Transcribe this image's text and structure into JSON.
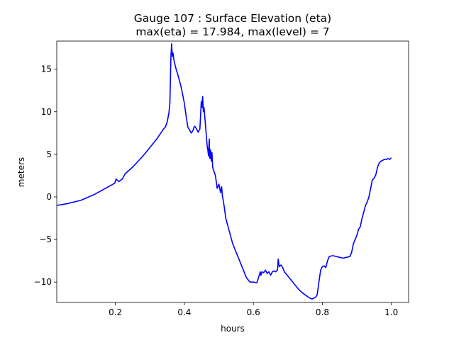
{
  "chart_data": {
    "type": "line",
    "title_line1": "Gauge 107 : Surface Elevation (eta)",
    "title_line2": "max(eta) =  17.984,    max(level) = 7",
    "xlabel": "hours",
    "ylabel": "meters",
    "xlim": [
      0.03,
      1.05
    ],
    "ylim": [
      -12.4,
      18.3
    ],
    "xticks": [
      0.2,
      0.4,
      0.6,
      0.8,
      1.0
    ],
    "xtick_labels": [
      "0.2",
      "0.4",
      "0.6",
      "0.8",
      "1.0"
    ],
    "yticks": [
      -10,
      -5,
      0,
      5,
      10,
      15
    ],
    "ytick_labels": [
      "−10",
      "−5",
      "0",
      "5",
      "10",
      "15"
    ],
    "grid": false,
    "line_color": "#0000ff",
    "series": [
      {
        "x": [
          0.03,
          0.06,
          0.1,
          0.14,
          0.18,
          0.198,
          0.202,
          0.21,
          0.22,
          0.228,
          0.25,
          0.28,
          0.3,
          0.32,
          0.34,
          0.345,
          0.35,
          0.355,
          0.358,
          0.361,
          0.363,
          0.365,
          0.367,
          0.37,
          0.373,
          0.376,
          0.38,
          0.39,
          0.395,
          0.4,
          0.405,
          0.41,
          0.42,
          0.425,
          0.428,
          0.43,
          0.435,
          0.44,
          0.445,
          0.449,
          0.451,
          0.453,
          0.455,
          0.457,
          0.46,
          0.463,
          0.466,
          0.468,
          0.47,
          0.472,
          0.474,
          0.476,
          0.478,
          0.48,
          0.482,
          0.484,
          0.49,
          0.495,
          0.5,
          0.505,
          0.508,
          0.51,
          0.515,
          0.52,
          0.53,
          0.54,
          0.55,
          0.56,
          0.57,
          0.58,
          0.59,
          0.6,
          0.61,
          0.62,
          0.622,
          0.625,
          0.63,
          0.635,
          0.64,
          0.645,
          0.65,
          0.655,
          0.66,
          0.665,
          0.67,
          0.672,
          0.675,
          0.68,
          0.685,
          0.69,
          0.7,
          0.71,
          0.72,
          0.73,
          0.74,
          0.75,
          0.76,
          0.77,
          0.78,
          0.785,
          0.79,
          0.795,
          0.8,
          0.805,
          0.81,
          0.815,
          0.82,
          0.83,
          0.84,
          0.85,
          0.86,
          0.87,
          0.88,
          0.885,
          0.89,
          0.9,
          0.905,
          0.91,
          0.915,
          0.92,
          0.925,
          0.93,
          0.935,
          0.94,
          0.945,
          0.95,
          0.955,
          0.96,
          0.965,
          0.97,
          0.975,
          0.98,
          0.985,
          0.99,
          0.995,
          1.0
        ],
        "y": [
          -1.0,
          -0.8,
          -0.4,
          0.3,
          1.2,
          1.6,
          2.1,
          1.8,
          2.1,
          2.7,
          3.5,
          4.8,
          5.8,
          6.8,
          8.0,
          8.2,
          8.8,
          9.8,
          11.0,
          16.5,
          17.98,
          16.5,
          16.9,
          16.0,
          15.5,
          15.0,
          14.5,
          13.0,
          12.0,
          11.0,
          9.5,
          8.2,
          7.5,
          7.8,
          8.2,
          8.3,
          8.0,
          7.6,
          8.0,
          11.2,
          10.5,
          11.8,
          10.0,
          10.5,
          9.0,
          7.5,
          6.0,
          5.5,
          4.8,
          6.8,
          4.5,
          5.5,
          4.2,
          5.2,
          3.5,
          3.2,
          2.5,
          1.0,
          1.5,
          0.5,
          1.2,
          0.2,
          -1.0,
          -2.5,
          -4.0,
          -5.5,
          -6.5,
          -7.5,
          -8.5,
          -9.5,
          -10.0,
          -10.0,
          -10.1,
          -8.8,
          -9.2,
          -8.8,
          -8.9,
          -8.6,
          -9.0,
          -8.8,
          -9.2,
          -8.8,
          -8.7,
          -8.8,
          -8.6,
          -7.3,
          -8.2,
          -8.0,
          -8.3,
          -8.8,
          -9.3,
          -9.8,
          -10.3,
          -10.8,
          -11.2,
          -11.5,
          -11.8,
          -12.0,
          -11.8,
          -11.5,
          -10.0,
          -8.6,
          -8.2,
          -8.1,
          -8.3,
          -7.5,
          -7.0,
          -6.9,
          -7.0,
          -7.1,
          -7.2,
          -7.1,
          -7.0,
          -6.5,
          -5.5,
          -4.5,
          -3.8,
          -3.5,
          -2.5,
          -1.8,
          -1.0,
          -0.6,
          0.0,
          1.0,
          2.0,
          2.2,
          2.6,
          3.5,
          4.0,
          4.2,
          4.3,
          4.4,
          4.4,
          4.5,
          4.4,
          4.6
        ]
      }
    ]
  }
}
